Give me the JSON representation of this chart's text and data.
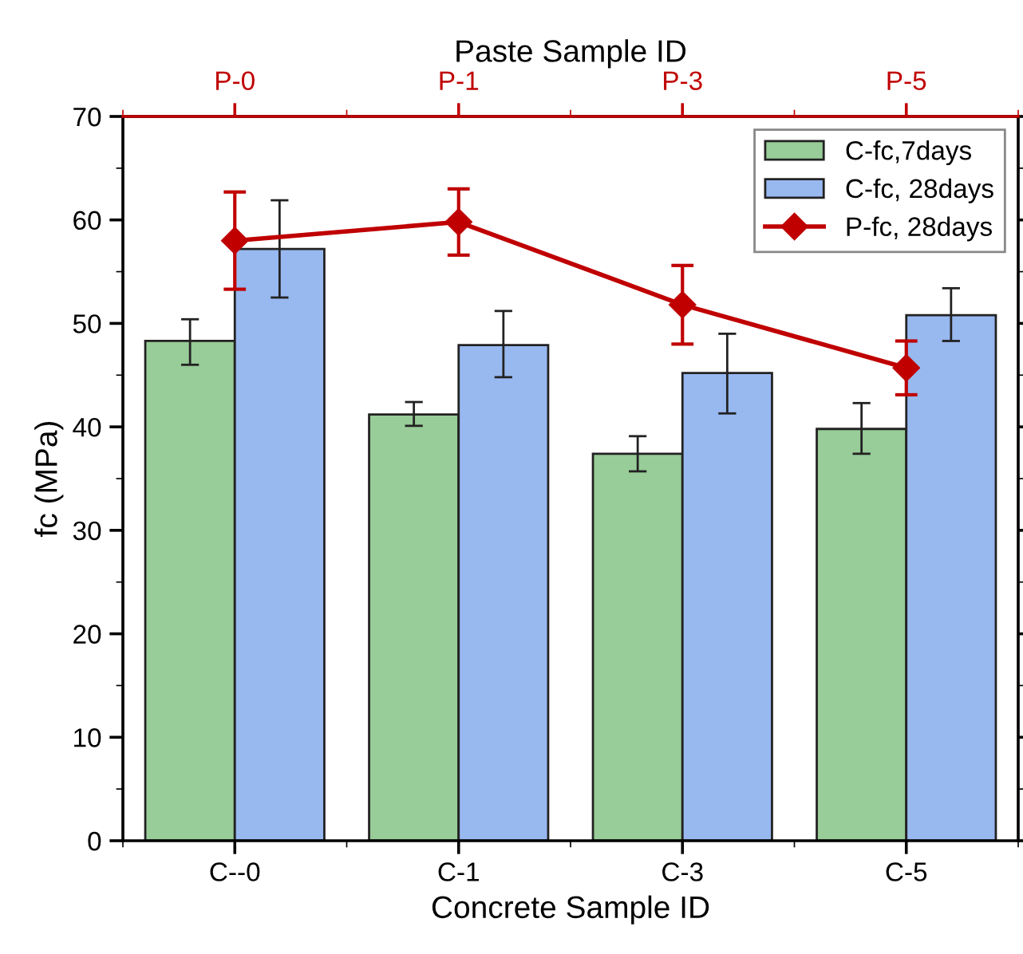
{
  "chart_data": {
    "type": "bar",
    "xlabel": "Concrete Sample ID",
    "ylabel": "fc (MPa)",
    "x2label": "Paste Sample ID",
    "categories": [
      "C--0",
      "C-1",
      "C-3",
      "C-5"
    ],
    "annotations": [
      "P-0",
      "P-1",
      "P-3",
      "P-5"
    ],
    "series": [
      {
        "name": "C-fc,7days",
        "color": "#98cc98",
        "values": [
          48.3,
          41.2,
          37.4,
          39.8
        ],
        "errors": [
          [
            46.0,
            50.4
          ],
          [
            40.1,
            42.4
          ],
          [
            35.7,
            39.1
          ],
          [
            37.4,
            42.3
          ]
        ]
      },
      {
        "name": "C-fc, 28days",
        "color": "#98b8f0",
        "values": [
          57.2,
          47.9,
          45.2,
          50.8
        ],
        "errors": [
          [
            52.5,
            61.9
          ],
          [
            44.8,
            51.2
          ],
          [
            41.3,
            49.0
          ],
          [
            48.3,
            53.4
          ]
        ]
      },
      {
        "name": "P-fc, 28days",
        "type": "line",
        "color": "#c00000",
        "marker": "diamond",
        "values": [
          58.0,
          59.8,
          51.8,
          45.7
        ],
        "errors": [
          [
            53.3,
            62.7
          ],
          [
            56.6,
            63.0
          ],
          [
            48.0,
            55.6
          ],
          [
            43.1,
            48.3
          ]
        ]
      }
    ],
    "ylim": [
      0,
      70
    ],
    "yticks": [
      0,
      10,
      20,
      30,
      40,
      50,
      60,
      70
    ],
    "grid": false,
    "legend": "top right"
  }
}
